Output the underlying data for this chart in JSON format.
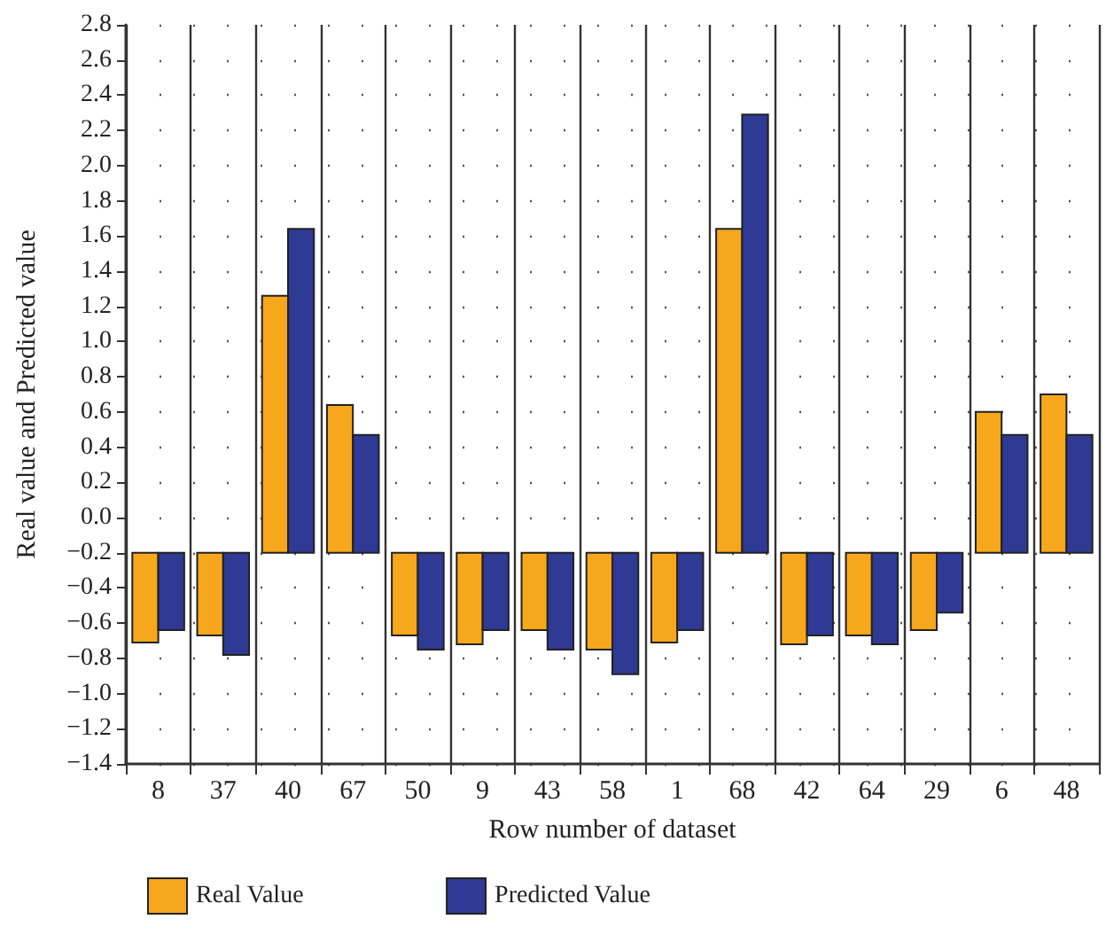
{
  "chart_data": {
    "type": "bar",
    "xlabel": "Row number of dataset",
    "ylabel": "Real value and Predicted value",
    "categories": [
      "8",
      "37",
      "40",
      "67",
      "50",
      "9",
      "43",
      "58",
      "1",
      "68",
      "42",
      "64",
      "29",
      "6",
      "48"
    ],
    "series": [
      {
        "name": "Real Value",
        "color": "#f7a71c",
        "base": [
          -0.2,
          -0.2,
          -0.2,
          -0.2,
          -0.2,
          -0.2,
          -0.2,
          -0.2,
          -0.2,
          -0.2,
          -0.2,
          -0.2,
          -0.2,
          -0.2,
          -0.2
        ],
        "values": [
          -0.51,
          -0.47,
          1.46,
          0.84,
          -0.47,
          -0.52,
          -0.44,
          -0.55,
          -0.51,
          1.84,
          -0.52,
          -0.47,
          -0.44,
          0.8,
          0.9
        ]
      },
      {
        "name": "Predicted Value",
        "color": "#2e3a93",
        "base": [
          -0.2,
          -0.2,
          -0.2,
          -0.2,
          -0.2,
          -0.2,
          -0.2,
          -0.2,
          -0.2,
          -0.2,
          -0.2,
          -0.2,
          -0.2,
          -0.2,
          -0.2
        ],
        "values": [
          -0.44,
          -0.58,
          1.84,
          0.67,
          -0.55,
          -0.44,
          -0.55,
          -0.69,
          -0.44,
          2.49,
          -0.47,
          -0.52,
          -0.34,
          0.67,
          0.67
        ]
      }
    ],
    "ylim": [
      -1.4,
      2.8
    ],
    "yticks": [
      {
        "value": -1.4,
        "label": "−1.4"
      },
      {
        "value": -1.2,
        "label": "−1.2"
      },
      {
        "value": -1.0,
        "label": "−1.0"
      },
      {
        "value": -0.8,
        "label": "−0.8"
      },
      {
        "value": -0.6,
        "label": "−0.6"
      },
      {
        "value": -0.4,
        "label": "−0.4"
      },
      {
        "value": -0.2,
        "label": "−0.2"
      },
      {
        "value": 0,
        "label": "0.0"
      },
      0.2,
      0.4,
      0.6,
      0.8,
      {
        "value": 1,
        "label": "1.0"
      },
      1.2,
      1.4,
      1.6,
      1.8,
      {
        "value": 2,
        "label": "2.0"
      },
      2.2,
      2.4,
      2.6,
      2.8
    ],
    "grid": true,
    "legend": "bottom left"
  }
}
